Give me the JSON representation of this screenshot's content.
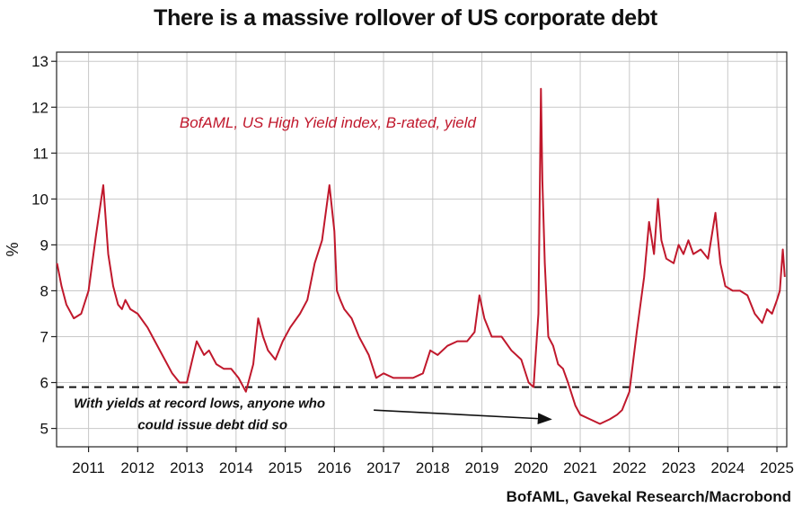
{
  "title": "There is a massive rollover of US corporate debt",
  "source": "BofAML, Gavekal Research/Macrobond",
  "colors": {
    "series": "#c0182c",
    "grid": "#c8c8c8",
    "axis": "#222222",
    "threshold": "#111111"
  },
  "chart_data": {
    "type": "line",
    "title": "There is a massive rollover of US corporate debt",
    "ylabel": "%",
    "xlabel": "",
    "ylim": [
      4.6,
      13.2
    ],
    "xlim": [
      2010.35,
      2025.2
    ],
    "y_ticks": [
      5,
      6,
      7,
      8,
      9,
      10,
      11,
      12,
      13
    ],
    "x_tick_labels": [
      "2011",
      "2012",
      "2013",
      "2014",
      "2015",
      "2016",
      "2017",
      "2018",
      "2019",
      "2020",
      "2021",
      "2022",
      "2023",
      "2024",
      "2025"
    ],
    "x_tick_positions": [
      2011,
      2012,
      2013,
      2014,
      2015,
      2016,
      2017,
      2018,
      2019,
      2020,
      2021,
      2022,
      2023,
      2024,
      2025
    ],
    "grid": true,
    "series": [
      {
        "name": "BofAML, US High Yield index, B-rated, yield",
        "x": [
          2010.36,
          2010.45,
          2010.55,
          2010.7,
          2010.85,
          2011.0,
          2011.15,
          2011.3,
          2011.4,
          2011.5,
          2011.6,
          2011.68,
          2011.75,
          2011.85,
          2012.0,
          2012.2,
          2012.35,
          2012.5,
          2012.7,
          2012.85,
          2013.0,
          2013.2,
          2013.35,
          2013.45,
          2013.6,
          2013.75,
          2013.9,
          2014.05,
          2014.2,
          2014.35,
          2014.45,
          2014.55,
          2014.65,
          2014.8,
          2014.95,
          2015.1,
          2015.3,
          2015.45,
          2015.6,
          2015.75,
          2015.9,
          2016.0,
          2016.05,
          2016.12,
          2016.2,
          2016.35,
          2016.5,
          2016.7,
          2016.85,
          2017.0,
          2017.2,
          2017.4,
          2017.6,
          2017.8,
          2017.95,
          2018.1,
          2018.3,
          2018.5,
          2018.7,
          2018.85,
          2018.95,
          2019.05,
          2019.2,
          2019.4,
          2019.6,
          2019.8,
          2019.95,
          2020.05,
          2020.15,
          2020.2,
          2020.23,
          2020.28,
          2020.35,
          2020.45,
          2020.55,
          2020.65,
          2020.75,
          2020.9,
          2021.0,
          2021.2,
          2021.4,
          2021.6,
          2021.75,
          2021.85,
          2022.0,
          2022.15,
          2022.3,
          2022.4,
          2022.5,
          2022.58,
          2022.65,
          2022.75,
          2022.9,
          2023.0,
          2023.1,
          2023.2,
          2023.3,
          2023.45,
          2023.6,
          2023.75,
          2023.85,
          2023.95,
          2024.1,
          2024.25,
          2024.4,
          2024.55,
          2024.7,
          2024.8,
          2024.9,
          2025.0,
          2025.06,
          2025.12,
          2025.16
        ],
        "values": [
          8.6,
          8.1,
          7.7,
          7.4,
          7.5,
          8.0,
          9.2,
          10.3,
          8.8,
          8.1,
          7.7,
          7.6,
          7.8,
          7.6,
          7.5,
          7.2,
          6.9,
          6.6,
          6.2,
          6.0,
          6.0,
          6.9,
          6.6,
          6.7,
          6.4,
          6.3,
          6.3,
          6.1,
          5.8,
          6.4,
          7.4,
          7.0,
          6.7,
          6.5,
          6.9,
          7.2,
          7.5,
          7.8,
          8.6,
          9.1,
          10.3,
          9.3,
          8.0,
          7.8,
          7.6,
          7.4,
          7.0,
          6.6,
          6.1,
          6.2,
          6.1,
          6.1,
          6.1,
          6.2,
          6.7,
          6.6,
          6.8,
          6.9,
          6.9,
          7.1,
          7.9,
          7.4,
          7.0,
          7.0,
          6.7,
          6.5,
          6.0,
          5.9,
          7.5,
          12.4,
          10.4,
          8.6,
          7.0,
          6.8,
          6.4,
          6.3,
          6.0,
          5.5,
          5.3,
          5.2,
          5.1,
          5.2,
          5.3,
          5.4,
          5.8,
          7.1,
          8.3,
          9.5,
          8.8,
          10.0,
          9.1,
          8.7,
          8.6,
          9.0,
          8.8,
          9.1,
          8.8,
          8.9,
          8.7,
          9.7,
          8.6,
          8.1,
          8.0,
          8.0,
          7.9,
          7.5,
          7.3,
          7.6,
          7.5,
          7.8,
          8.0,
          8.9,
          8.3
        ]
      }
    ],
    "annotations": [
      {
        "text_line1": "With yields at record lows, anyone who",
        "text_line2": "could issue debt did so"
      }
    ],
    "threshold_value": 5.9
  }
}
